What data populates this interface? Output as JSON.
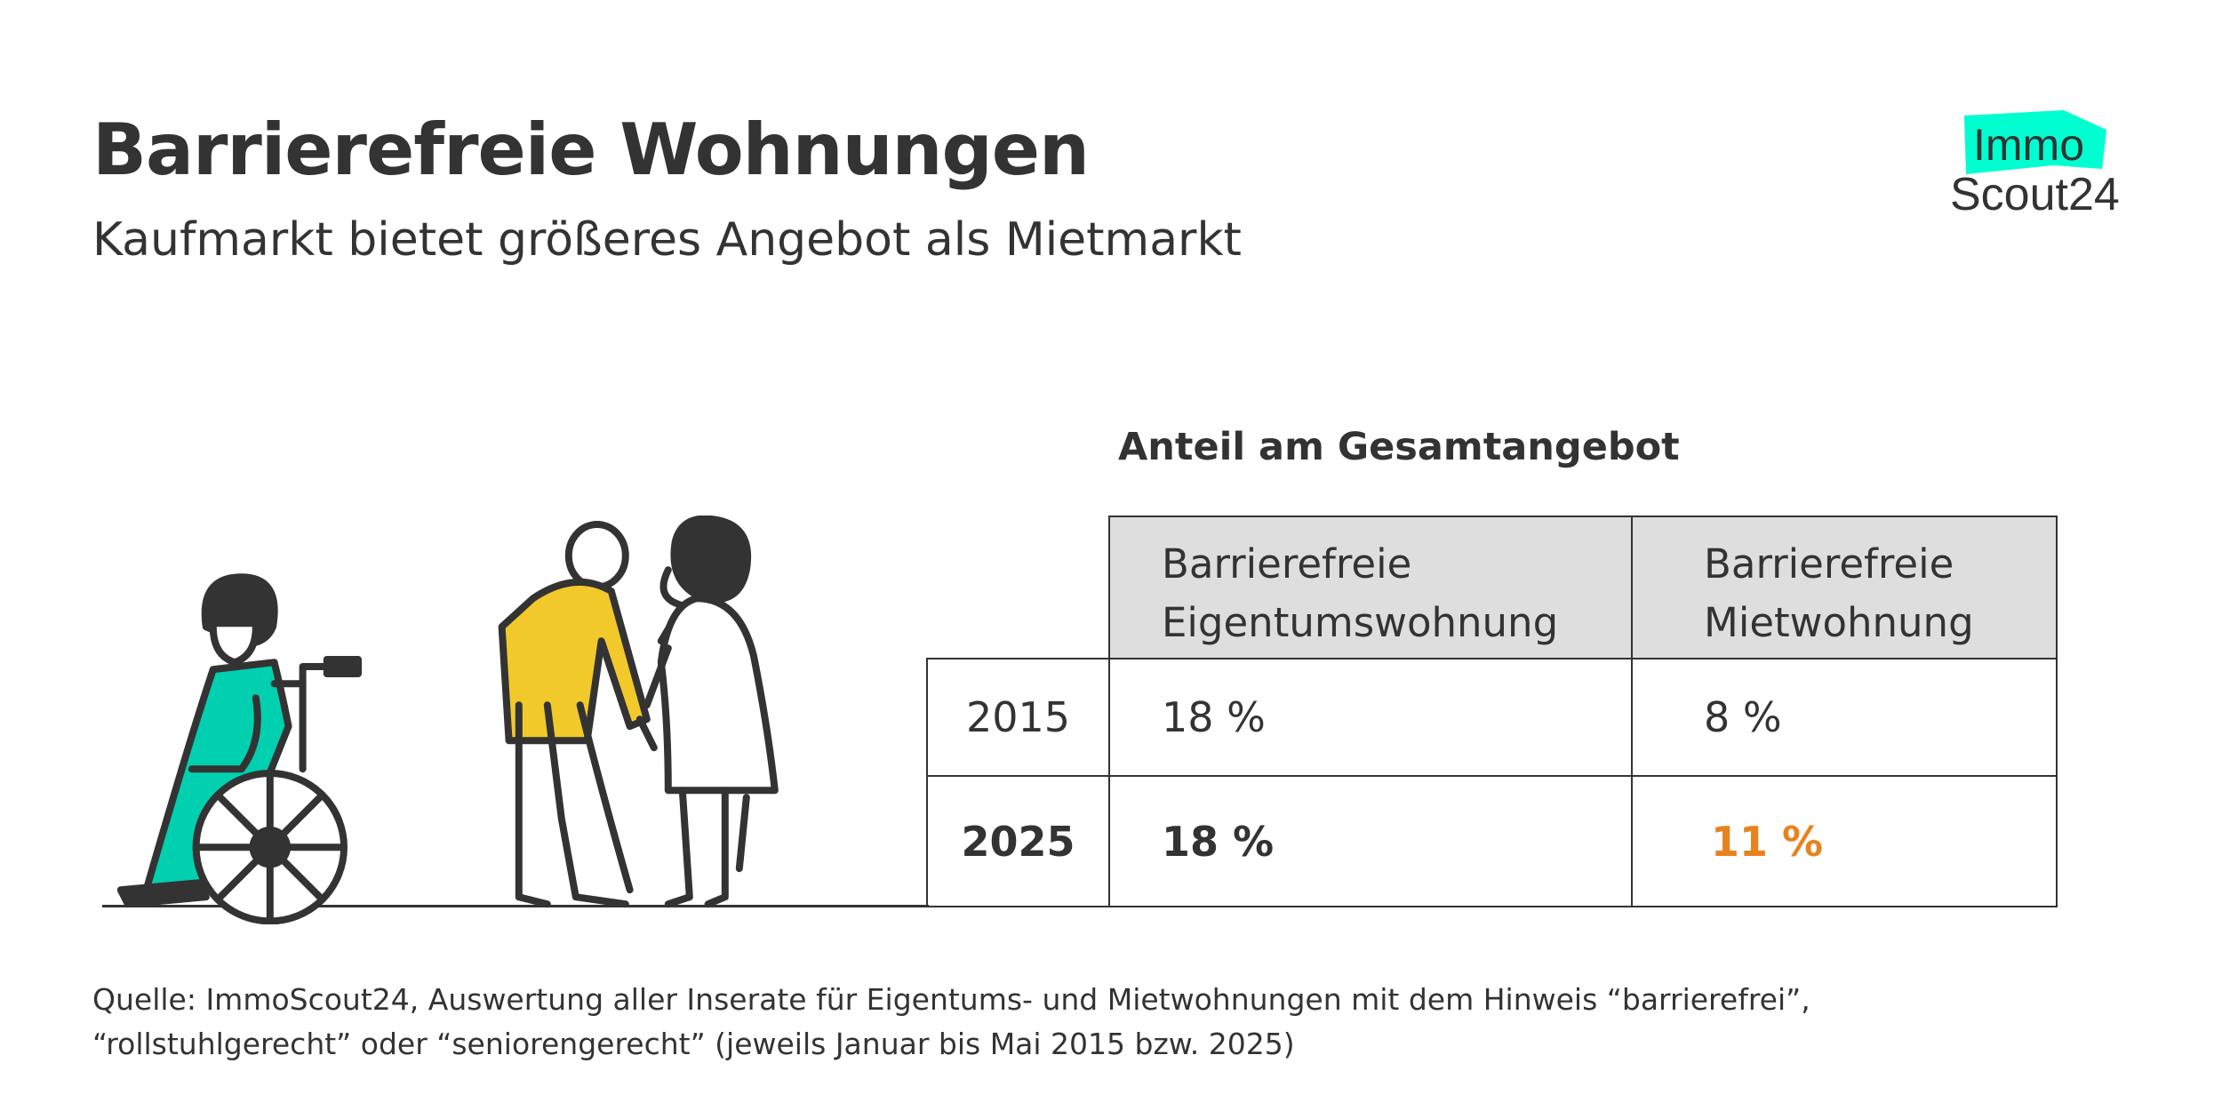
{
  "header": {
    "title": "Barrierefreie Wohnungen",
    "subtitle": "Kaufmarkt bietet größeres Angebot als Mietmarkt"
  },
  "logo": {
    "line1": "Immo",
    "line2": "Scout24",
    "accent_color": "#00ffd0"
  },
  "table": {
    "title": "Anteil am Gesamtangebot",
    "columns": [
      "Barrierefreie\nEigentumswohnung",
      "Barrierefreie\nMietwohnung"
    ],
    "column_lines": [
      [
        "Barrierefreie",
        "Eigentumswohnung"
      ],
      [
        "Barrierefreie",
        "Mietwohnung"
      ]
    ],
    "rows": [
      {
        "year": "2015",
        "values": [
          "18 %",
          "8 %"
        ]
      },
      {
        "year": "2025",
        "values": [
          "18 %",
          "11 %"
        ],
        "bold": true
      }
    ],
    "highlight_color": "#e8821e",
    "header_bg": "#dedede"
  },
  "footer": {
    "line1": "Quelle: ImmoScout24, Auswertung aller Inserate für Eigentums- und Mietwohnungen mit dem Hinweis “barrierefrei”,",
    "line2": "“rollstuhlgerecht” oder “seniorengerecht” (jeweils Januar bis Mai 2015 bzw. 2025)"
  },
  "illustration": {
    "figures": [
      "wheelchair-user",
      "elderly-person-with-helper"
    ],
    "colors": {
      "dress": "#00cfb0",
      "shirt": "#f2c92a",
      "line": "#333333"
    }
  }
}
